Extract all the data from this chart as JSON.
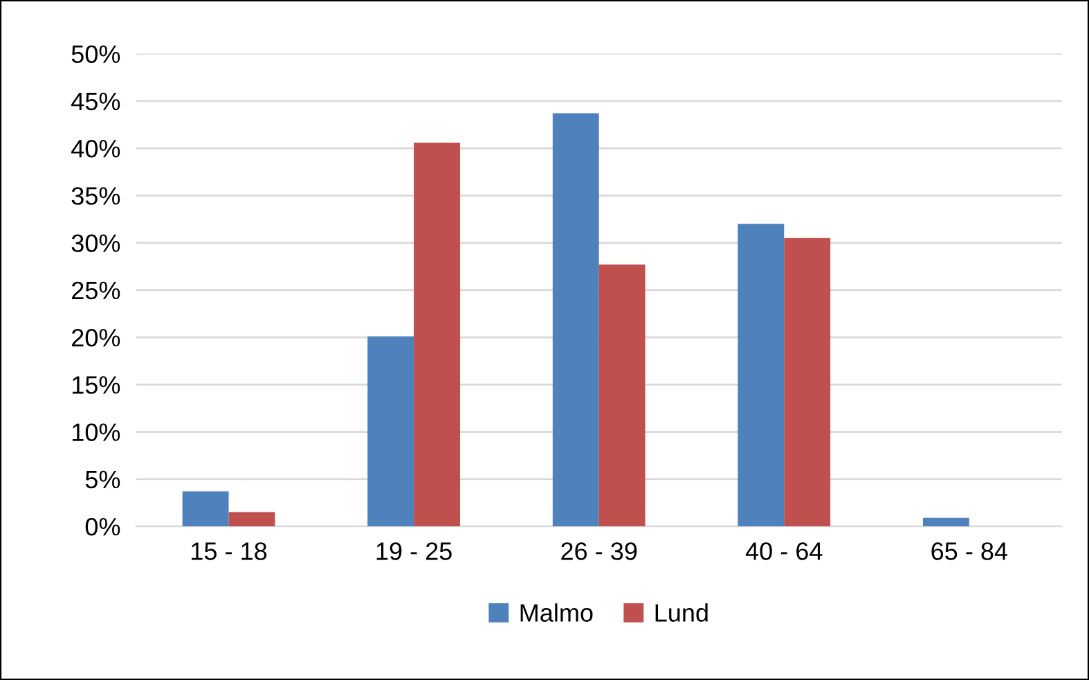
{
  "chart_data": {
    "type": "bar",
    "categories": [
      "15 - 18",
      "19 - 25",
      "26 - 39",
      "40 - 64",
      "65 - 84"
    ],
    "series": [
      {
        "name": "Malmo",
        "color": "#4f81bd",
        "values": [
          3.7,
          20.1,
          43.7,
          32.0,
          0.9
        ]
      },
      {
        "name": "Lund",
        "color": "#c0504d",
        "values": [
          1.5,
          40.6,
          27.7,
          30.5,
          0
        ]
      }
    ],
    "ylim": [
      0,
      50
    ],
    "yticks": [
      {
        "value": 0,
        "label": "0%"
      },
      {
        "value": 5,
        "label": "5%"
      },
      {
        "value": 10,
        "label": "10%"
      },
      {
        "value": 15,
        "label": "15%"
      },
      {
        "value": 20,
        "label": "20%"
      },
      {
        "value": 25,
        "label": "25%"
      },
      {
        "value": 30,
        "label": "30%"
      },
      {
        "value": 35,
        "label": "35%"
      },
      {
        "value": 40,
        "label": "40%"
      },
      {
        "value": 45,
        "label": "45%"
      },
      {
        "value": 50,
        "label": "50%"
      }
    ],
    "grid": "y",
    "legend": "bottom"
  }
}
